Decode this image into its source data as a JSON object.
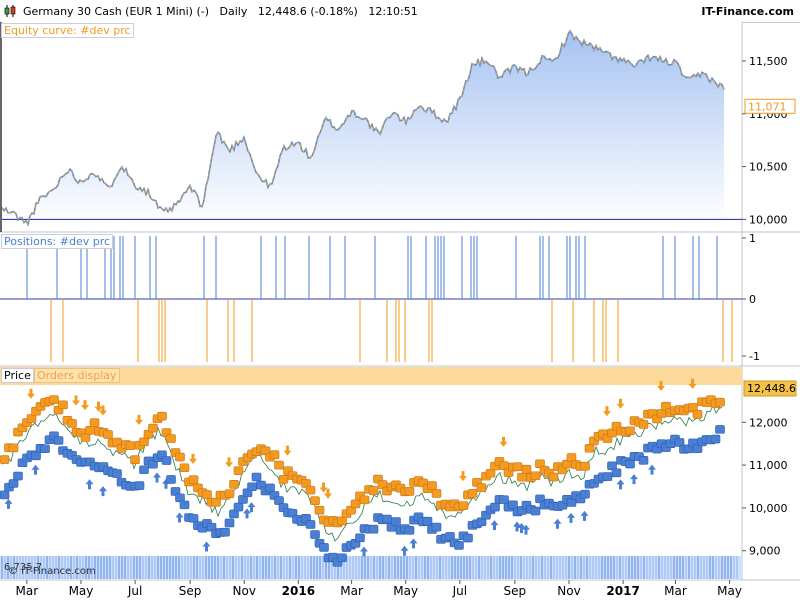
{
  "header": {
    "instrument": "Germany 30 Cash (EUR 1 Mini) (-)",
    "timeframe": "Daily",
    "price": "12,448.6 (-0.18%)",
    "time": "12:10:51",
    "brand": "IT-Finance.com"
  },
  "panels": {
    "equity_label": "Equity curve: #dev prc",
    "positions_label": "Positions: #dev prc",
    "price_label": "Price",
    "orders_label": "Orders display",
    "equity_last_badge": "11,071",
    "price_last_badge": "12,448.6",
    "bottom_left_label": "6,735.7",
    "watermark": "© IT-Finance.com"
  },
  "colors": {
    "equity_line_a": "#5b8fd6",
    "equity_line_b": "#f39a1f",
    "equity_fill": "#bcd3f5",
    "long_color": "#4a7fd4",
    "short_color": "#f39a1f",
    "orders_bar": "#fbd99a",
    "volume_strip": "#8fb4ee",
    "baseline": "#2a3fb0"
  },
  "chart_data": [
    {
      "type": "area",
      "title": "Equity curve: #dev prc",
      "yticks": [
        "11,500",
        "11,000",
        "10,500",
        "10,000"
      ],
      "ylim": [
        9900,
        11850
      ],
      "baseline": 10000,
      "last_value": "11,071",
      "x_dates": [
        "2015-02-01",
        "2015-02-15",
        "2015-03-01",
        "2015-03-15",
        "2015-04-01",
        "2015-04-15",
        "2015-05-01",
        "2015-05-15",
        "2015-06-01",
        "2015-06-15",
        "2015-07-01",
        "2015-07-15",
        "2015-08-01",
        "2015-08-15",
        "2015-09-01",
        "2015-09-15",
        "2015-10-01",
        "2015-10-15",
        "2015-11-01",
        "2015-11-15",
        "2015-12-01",
        "2015-12-15",
        "2016-01-01",
        "2016-01-15",
        "2016-02-01",
        "2016-02-15",
        "2016-03-01",
        "2016-03-15",
        "2016-04-01",
        "2016-04-15",
        "2016-05-01",
        "2016-05-15",
        "2016-06-01",
        "2016-06-15",
        "2016-07-01",
        "2016-07-15",
        "2016-08-01",
        "2016-08-15",
        "2016-09-01",
        "2016-09-15",
        "2016-10-01",
        "2016-10-15",
        "2016-11-01",
        "2016-11-15",
        "2016-12-01",
        "2016-12-15",
        "2017-01-01",
        "2017-01-15",
        "2017-02-01",
        "2017-02-15",
        "2017-03-01",
        "2017-03-15",
        "2017-04-01",
        "2017-04-15",
        "2017-05-01"
      ],
      "values": [
        10100,
        10050,
        9960,
        10180,
        10290,
        10480,
        10350,
        10460,
        10280,
        10520,
        10330,
        10260,
        10060,
        10120,
        10310,
        10120,
        10830,
        10650,
        10780,
        10430,
        10300,
        10680,
        10720,
        10580,
        10950,
        10850,
        11020,
        10960,
        10800,
        11020,
        10920,
        11080,
        11010,
        10920,
        11130,
        11460,
        11510,
        11340,
        11440,
        11380,
        11520,
        11490,
        11760,
        11680,
        11620,
        11560,
        11500,
        11450,
        11540,
        11500,
        11480,
        11310,
        11380,
        11300,
        11190
      ]
    },
    {
      "type": "bar",
      "title": "Positions: #dev prc",
      "yticks": [
        "1",
        "0",
        "-1"
      ],
      "ylim": [
        -1,
        1
      ]
    },
    {
      "type": "line",
      "title": "Price",
      "yticks": [
        "12,000",
        "11,000",
        "10,000",
        "9,000"
      ],
      "ylim": [
        8900,
        12800
      ],
      "last_price": "12,448.6",
      "x_dates": [
        "2015-02-01",
        "2015-02-15",
        "2015-03-01",
        "2015-03-15",
        "2015-04-01",
        "2015-04-15",
        "2015-05-01",
        "2015-05-15",
        "2015-06-01",
        "2015-06-15",
        "2015-07-01",
        "2015-07-15",
        "2015-08-01",
        "2015-08-15",
        "2015-09-01",
        "2015-09-15",
        "2015-10-01",
        "2015-10-15",
        "2015-11-01",
        "2015-11-15",
        "2015-12-01",
        "2015-12-15",
        "2016-01-01",
        "2016-01-15",
        "2016-02-01",
        "2016-02-15",
        "2016-03-01",
        "2016-03-15",
        "2016-04-01",
        "2016-04-15",
        "2016-05-01",
        "2016-05-15",
        "2016-06-01",
        "2016-06-15",
        "2016-07-01",
        "2016-07-15",
        "2016-08-01",
        "2016-08-15",
        "2016-09-01",
        "2016-09-15",
        "2016-10-01",
        "2016-10-15",
        "2016-11-01",
        "2016-11-15",
        "2016-12-01",
        "2016-12-15",
        "2017-01-01",
        "2017-01-15",
        "2017-02-01",
        "2017-02-15",
        "2017-03-01",
        "2017-03-15",
        "2017-04-01",
        "2017-04-15",
        "2017-05-01"
      ],
      "values": [
        10900,
        11300,
        11700,
        12000,
        12200,
        11900,
        11500,
        11600,
        11300,
        11250,
        11000,
        11600,
        11800,
        11000,
        10300,
        10200,
        9900,
        10200,
        10800,
        11200,
        11000,
        10500,
        10400,
        10200,
        9500,
        9300,
        9700,
        10000,
        10300,
        10200,
        10000,
        10300,
        10100,
        9800,
        9800,
        10100,
        10500,
        10700,
        10600,
        10500,
        10700,
        10600,
        10800,
        10700,
        11300,
        11400,
        11600,
        11700,
        11900,
        12000,
        12100,
        12000,
        12100,
        12300,
        12400
      ]
    }
  ],
  "x_axis": {
    "labels": [
      "Mar",
      "May",
      "Jul",
      "Sep",
      "Nov",
      "2016",
      "Mar",
      "May",
      "Jul",
      "Sep",
      "Nov",
      "2017",
      "Mar",
      "May"
    ],
    "dates": [
      "2015-03-01",
      "2015-05-01",
      "2015-07-01",
      "2015-09-01",
      "2015-11-01",
      "2016-01-01",
      "2016-03-01",
      "2016-05-01",
      "2016-07-01",
      "2016-09-01",
      "2016-11-01",
      "2017-01-01",
      "2017-03-01",
      "2017-05-01"
    ],
    "bold": [
      false,
      false,
      false,
      false,
      false,
      true,
      false,
      false,
      false,
      false,
      false,
      true,
      false,
      false
    ]
  }
}
